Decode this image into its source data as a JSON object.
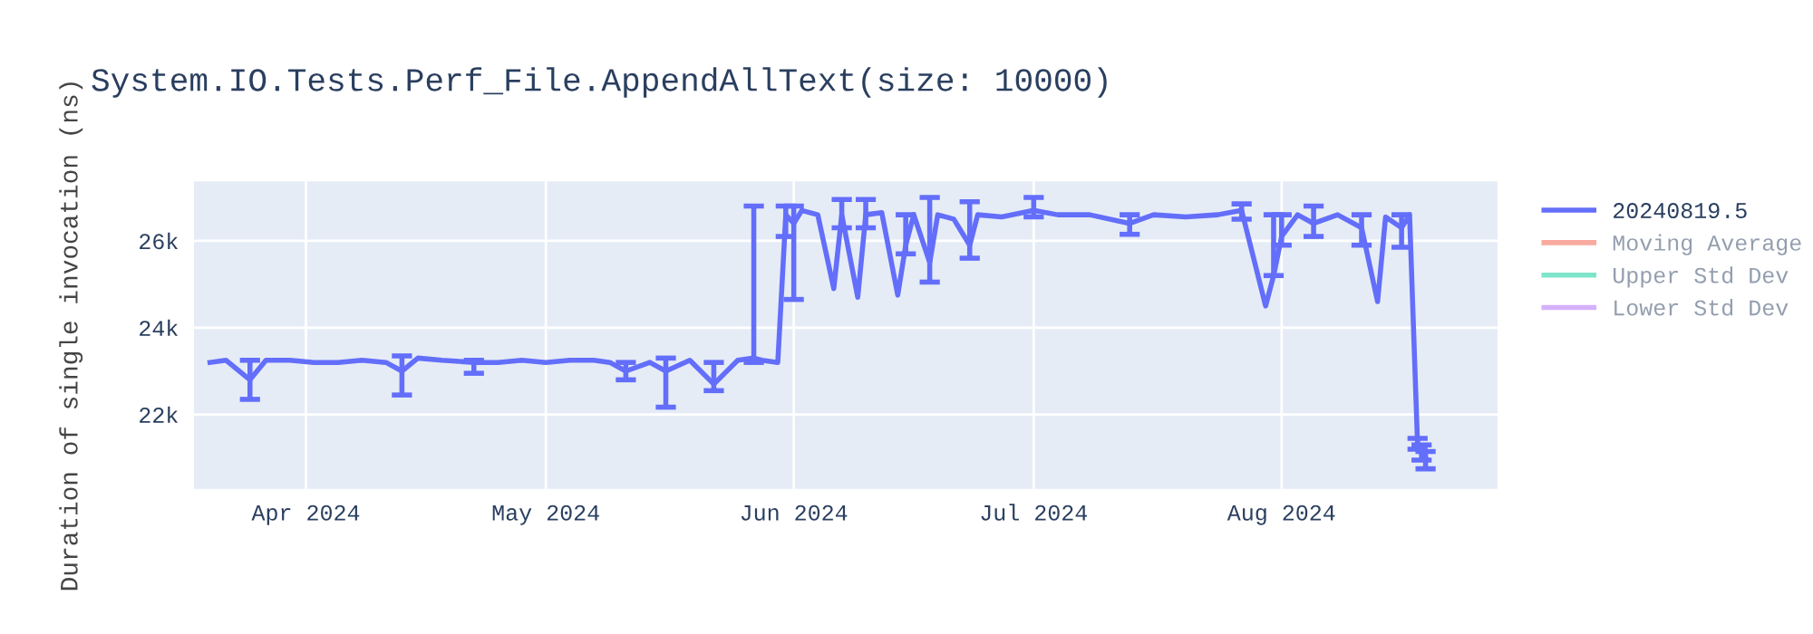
{
  "chart_data": {
    "type": "line",
    "title": "System.IO.Tests.Perf_File.AppendAllText(size: 10000)",
    "ylabel": "Duration of single invocation (ns)",
    "x": [
      "2024-03-20",
      "2024-03-22",
      "2024-03-25",
      "2024-03-27",
      "2024-03-30",
      "2024-04-02",
      "2024-04-05",
      "2024-04-08",
      "2024-04-11",
      "2024-04-13",
      "2024-04-15",
      "2024-04-18",
      "2024-04-22",
      "2024-04-25",
      "2024-04-28",
      "2024-05-01",
      "2024-05-04",
      "2024-05-07",
      "2024-05-09",
      "2024-05-11",
      "2024-05-14",
      "2024-05-16",
      "2024-05-19",
      "2024-05-22",
      "2024-05-25",
      "2024-05-27",
      "2024-05-28",
      "2024-05-30",
      "2024-05-31",
      "2024-06-01",
      "2024-06-02",
      "2024-06-04",
      "2024-06-06",
      "2024-06-07",
      "2024-06-09",
      "2024-06-10",
      "2024-06-12",
      "2024-06-14",
      "2024-06-15",
      "2024-06-16",
      "2024-06-18",
      "2024-06-19",
      "2024-06-21",
      "2024-06-23",
      "2024-06-24",
      "2024-06-27",
      "2024-07-01",
      "2024-07-04",
      "2024-07-08",
      "2024-07-13",
      "2024-07-16",
      "2024-07-20",
      "2024-07-24",
      "2024-07-27",
      "2024-07-30",
      "2024-07-31",
      "2024-08-01",
      "2024-08-03",
      "2024-08-05",
      "2024-08-08",
      "2024-08-11",
      "2024-08-13",
      "2024-08-14",
      "2024-08-16",
      "2024-08-17",
      "2024-08-18",
      "2024-08-18T12:00",
      "2024-08-19"
    ],
    "series": [
      {
        "name": "20240819.5",
        "color": "#636efa",
        "values": [
          23200,
          23250,
          22800,
          23250,
          23250,
          23200,
          23200,
          23250,
          23200,
          23000,
          23300,
          23250,
          23200,
          23200,
          23250,
          23200,
          23250,
          23250,
          23200,
          23000,
          23200,
          23000,
          23250,
          22700,
          23250,
          23300,
          23250,
          23200,
          26600,
          26400,
          26700,
          26600,
          24900,
          26600,
          24700,
          26600,
          26650,
          24750,
          25900,
          26600,
          25500,
          26600,
          26500,
          25900,
          26600,
          26550,
          26700,
          26600,
          26600,
          26400,
          26600,
          26550,
          26600,
          26700,
          24500,
          25200,
          26100,
          26600,
          26400,
          26600,
          26300,
          24600,
          26550,
          26300,
          26600,
          21300,
          21100,
          21000
        ],
        "errors": [
          null,
          null,
          [
            22350,
            23250
          ],
          null,
          null,
          null,
          null,
          null,
          null,
          [
            22450,
            23350
          ],
          null,
          null,
          [
            22950,
            23250
          ],
          null,
          null,
          null,
          null,
          null,
          null,
          [
            22800,
            23200
          ],
          null,
          [
            22170,
            23300
          ],
          null,
          [
            22550,
            23200
          ],
          null,
          [
            23200,
            26800
          ],
          null,
          null,
          [
            26100,
            26800
          ],
          [
            24650,
            26800
          ],
          null,
          null,
          null,
          [
            26300,
            26950
          ],
          null,
          [
            26300,
            26950
          ],
          null,
          null,
          [
            25700,
            26600
          ],
          null,
          [
            25050,
            27000
          ],
          null,
          null,
          [
            25600,
            26900
          ],
          null,
          null,
          [
            26550,
            27000
          ],
          null,
          null,
          [
            26150,
            26600
          ],
          null,
          null,
          null,
          [
            26500,
            26850
          ],
          null,
          [
            25200,
            26600
          ],
          [
            25900,
            26600
          ],
          null,
          [
            26100,
            26800
          ],
          null,
          [
            25900,
            26600
          ],
          null,
          null,
          [
            25850,
            26600
          ],
          null,
          [
            21200,
            21450
          ],
          [
            20950,
            21300
          ],
          [
            20750,
            21150
          ]
        ]
      },
      {
        "name": "Moving Average",
        "color": "#ef553b",
        "values": [
          null,
          null,
          null,
          null,
          null,
          null,
          null,
          null,
          null,
          null,
          null,
          null,
          null,
          null,
          null,
          null,
          null,
          null,
          null,
          null,
          null,
          null,
          null,
          null,
          null,
          null,
          null,
          null,
          null,
          null,
          null,
          null,
          null,
          null,
          null,
          null,
          null,
          null,
          null,
          null,
          null,
          null,
          null,
          null,
          null,
          null,
          null,
          null,
          null,
          null,
          null,
          null,
          null,
          null,
          null,
          null,
          null,
          null,
          null,
          null,
          null,
          null,
          null,
          null,
          null,
          null,
          null,
          null
        ]
      },
      {
        "name": "Upper Std Dev",
        "color": "#00cc96",
        "values": [
          null,
          null,
          null,
          null,
          null,
          null,
          null,
          null,
          null,
          null,
          null,
          null,
          null,
          null,
          null,
          null,
          null,
          null,
          null,
          null,
          null,
          null,
          null,
          null,
          null,
          null,
          null,
          null,
          null,
          null,
          null,
          null,
          null,
          null,
          null,
          null,
          null,
          null,
          null,
          null,
          null,
          null,
          null,
          null,
          null,
          null,
          null,
          null,
          null,
          null,
          null,
          null,
          null,
          null,
          null,
          null,
          null,
          null,
          null,
          null,
          null,
          null,
          null,
          null,
          null,
          null,
          null,
          null
        ]
      },
      {
        "name": "Lower Std Dev",
        "color": "#ab63fa",
        "values": [
          null,
          null,
          null,
          null,
          null,
          null,
          null,
          null,
          null,
          null,
          null,
          null,
          null,
          null,
          null,
          null,
          null,
          null,
          null,
          null,
          null,
          null,
          null,
          null,
          null,
          null,
          null,
          null,
          null,
          null,
          null,
          null,
          null,
          null,
          null,
          null,
          null,
          null,
          null,
          null,
          null,
          null,
          null,
          null,
          null,
          null,
          null,
          null,
          null,
          null,
          null,
          null,
          null,
          null,
          null,
          null,
          null,
          null,
          null,
          null,
          null,
          null,
          null,
          null,
          null,
          null,
          null,
          null
        ]
      }
    ],
    "xlim": [
      "2024-03-18",
      "2024-08-28"
    ],
    "ylim": [
      20290,
      27370
    ],
    "xticks": [
      {
        "value": "2024-04-01",
        "label": "Apr 2024"
      },
      {
        "value": "2024-05-01",
        "label": "May 2024"
      },
      {
        "value": "2024-06-01",
        "label": "Jun 2024"
      },
      {
        "value": "2024-07-01",
        "label": "Jul 2024"
      },
      {
        "value": "2024-08-01",
        "label": "Aug 2024"
      }
    ],
    "yticks": [
      {
        "value": 22000,
        "label": "22k"
      },
      {
        "value": 24000,
        "label": "24k"
      },
      {
        "value": 26000,
        "label": "26k"
      }
    ],
    "grid": true,
    "legend": "right"
  }
}
